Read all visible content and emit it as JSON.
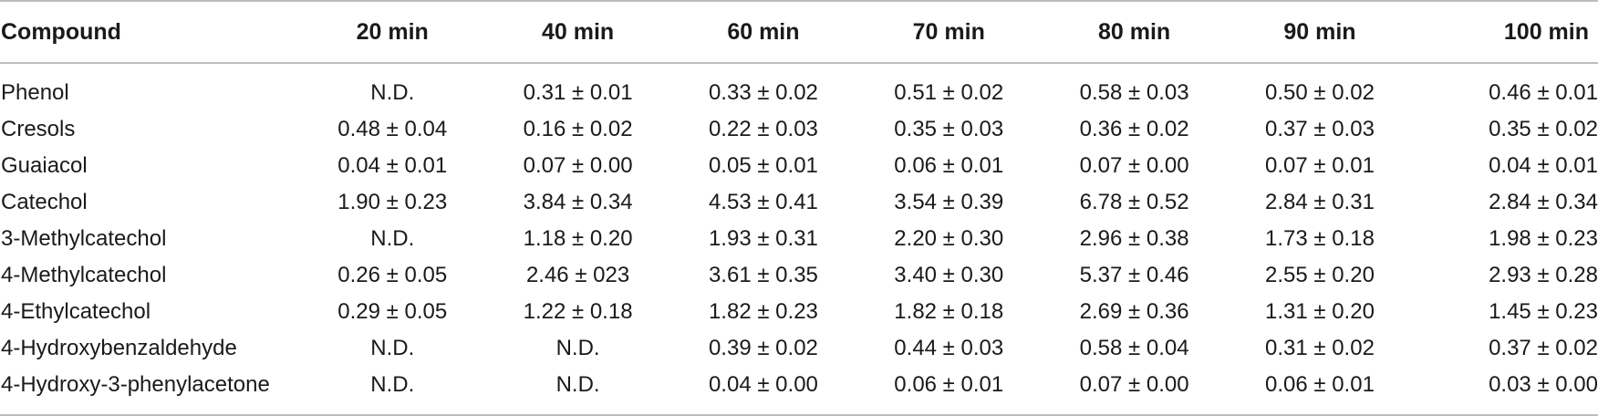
{
  "table": {
    "headers": [
      "Compound",
      "20 min",
      "40 min",
      "60 min",
      "70 min",
      "80 min",
      "90 min",
      "100 min"
    ],
    "rows": [
      [
        "Phenol",
        "N.D.",
        "0.31 ± 0.01",
        "0.33 ± 0.02",
        "0.51 ± 0.02",
        "0.58 ± 0.03",
        "0.50 ± 0.02",
        "0.46 ± 0.01"
      ],
      [
        "Cresols",
        "0.48 ± 0.04",
        "0.16 ± 0.02",
        "0.22 ± 0.03",
        "0.35 ± 0.03",
        "0.36 ± 0.02",
        "0.37 ± 0.03",
        "0.35 ± 0.02"
      ],
      [
        "Guaiacol",
        "0.04 ± 0.01",
        "0.07 ± 0.00",
        "0.05 ± 0.01",
        "0.06 ± 0.01",
        "0.07 ± 0.00",
        "0.07 ± 0.01",
        "0.04 ± 0.01"
      ],
      [
        "Catechol",
        "1.90 ± 0.23",
        "3.84 ± 0.34",
        "4.53 ± 0.41",
        "3.54 ± 0.39",
        "6.78 ± 0.52",
        "2.84 ± 0.31",
        "2.84 ± 0.34"
      ],
      [
        "3-Methylcatechol",
        "N.D.",
        "1.18 ± 0.20",
        "1.93 ± 0.31",
        "2.20 ± 0.30",
        "2.96 ± 0.38",
        "1.73 ± 0.18",
        "1.98 ± 0.23"
      ],
      [
        "4-Methylcatechol",
        "0.26 ± 0.05",
        "2.46 ± 023",
        "3.61 ± 0.35",
        "3.40 ± 0.30",
        "5.37 ± 0.46",
        "2.55 ± 0.20",
        "2.93 ± 0.28"
      ],
      [
        "4-Ethylcatechol",
        "0.29 ± 0.05",
        "1.22 ± 0.18",
        "1.82 ± 0.23",
        "1.82 ± 0.18",
        "2.69 ± 0.36",
        "1.31 ± 0.20",
        "1.45 ± 0.23"
      ],
      [
        "4-Hydroxybenzaldehyde",
        "N.D.",
        "N.D.",
        "0.39 ± 0.02",
        "0.44 ± 0.03",
        "0.58 ± 0.04",
        "0.31 ± 0.02",
        "0.37 ± 0.02"
      ],
      [
        "4-Hydroxy-3-phenylacetone",
        "N.D.",
        "N.D.",
        "0.04 ± 0.00",
        "0.06 ± 0.01",
        "0.07 ± 0.00",
        "0.06 ± 0.01",
        "0.03 ± 0.00"
      ]
    ]
  }
}
